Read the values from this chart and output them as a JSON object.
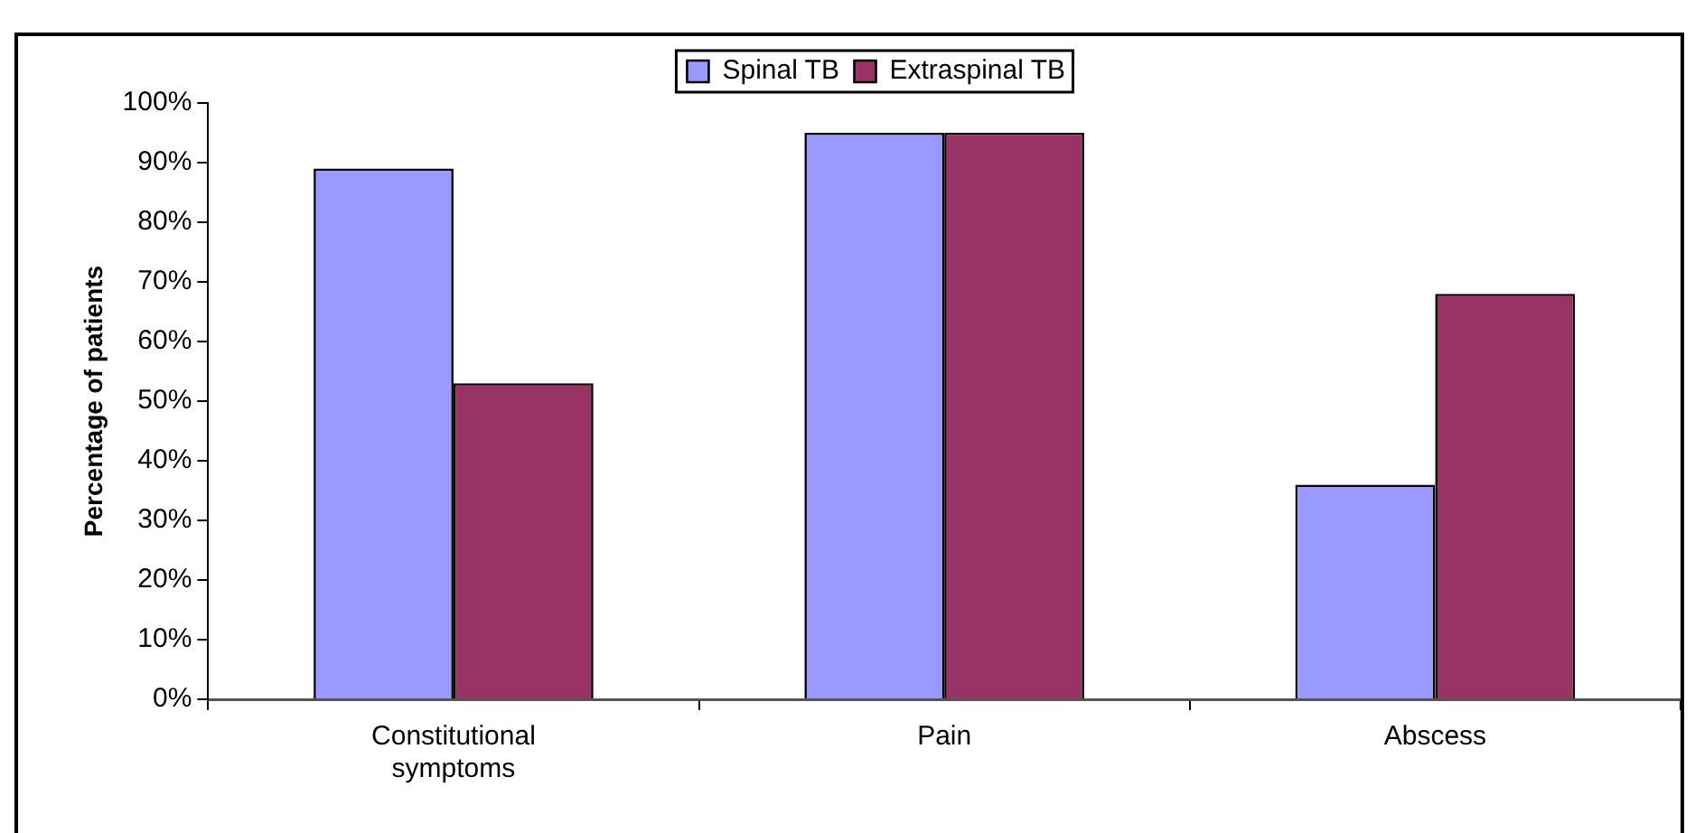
{
  "chart_data": {
    "type": "bar",
    "ylabel": "Percentage of patients",
    "categories": [
      "Constitutional symptoms",
      "Pain",
      "Abscess"
    ],
    "series": [
      {
        "name": "Spinal TB",
        "color": "#9999ff",
        "values": [
          89,
          95,
          36
        ]
      },
      {
        "name": "Extraspinal TB",
        "color": "#993366",
        "values": [
          53,
          95,
          68
        ]
      }
    ],
    "ylim": [
      0,
      100
    ],
    "yticks": [
      {
        "value": 0,
        "label": "0%"
      },
      {
        "value": 10,
        "label": "10%"
      },
      {
        "value": 20,
        "label": "20%"
      },
      {
        "value": 30,
        "label": "30%"
      },
      {
        "value": 40,
        "label": "40%"
      },
      {
        "value": 50,
        "label": "50%"
      },
      {
        "value": 60,
        "label": "60%"
      },
      {
        "value": 70,
        "label": "70%"
      },
      {
        "value": 80,
        "label": "80%"
      },
      {
        "value": 90,
        "label": "90%"
      },
      {
        "value": 100,
        "label": "100%"
      }
    ],
    "grid": false,
    "legend": "top"
  }
}
